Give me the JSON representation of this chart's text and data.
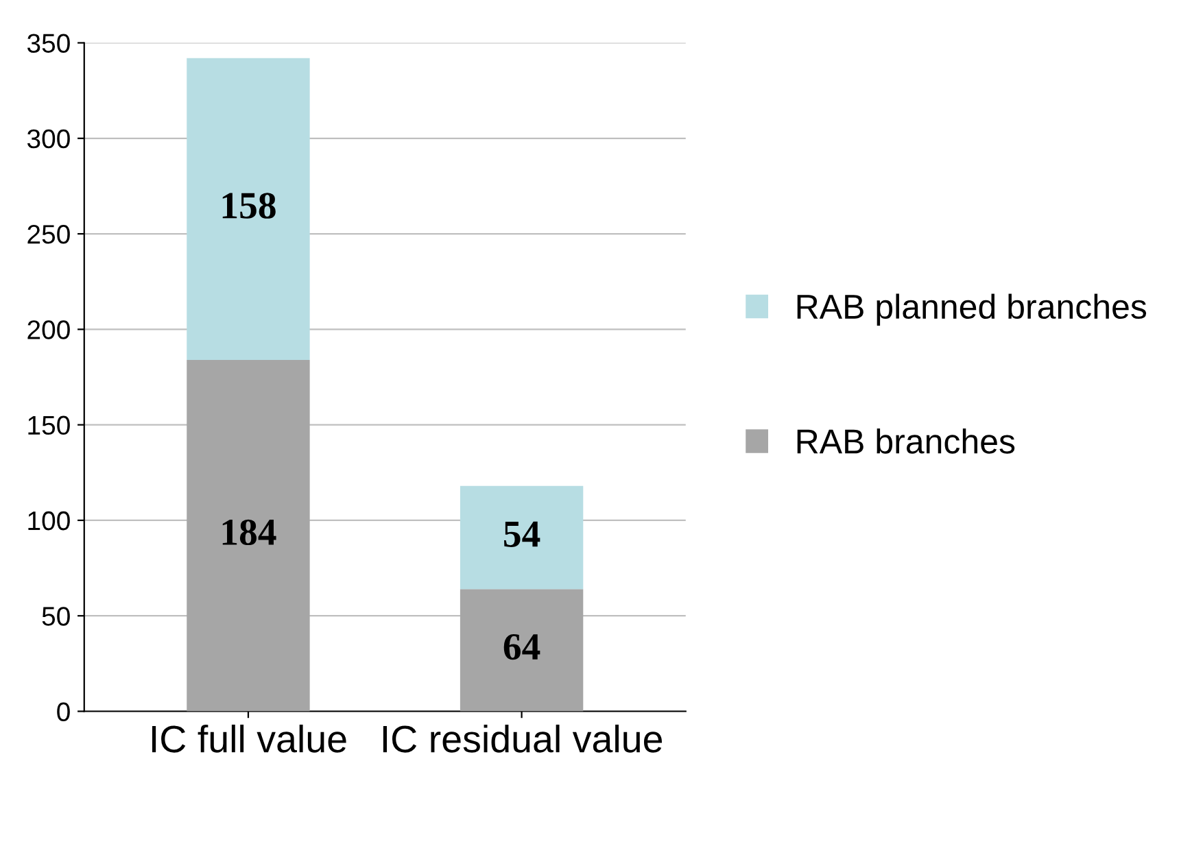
{
  "chart_data": {
    "type": "bar",
    "stacked": true,
    "categories": [
      "IC full value",
      "IC residual value"
    ],
    "series": [
      {
        "name": "RAB branches",
        "color": "#a6a6a6",
        "values": [
          184,
          64
        ]
      },
      {
        "name": "RAB planned branches",
        "color": "#b7dde3",
        "values": [
          158,
          54
        ]
      }
    ],
    "ylim": [
      0,
      350
    ],
    "yticks": [
      0,
      50,
      100,
      150,
      200,
      250,
      300,
      350
    ],
    "grid": "y",
    "legend": "right",
    "data_labels": true
  }
}
